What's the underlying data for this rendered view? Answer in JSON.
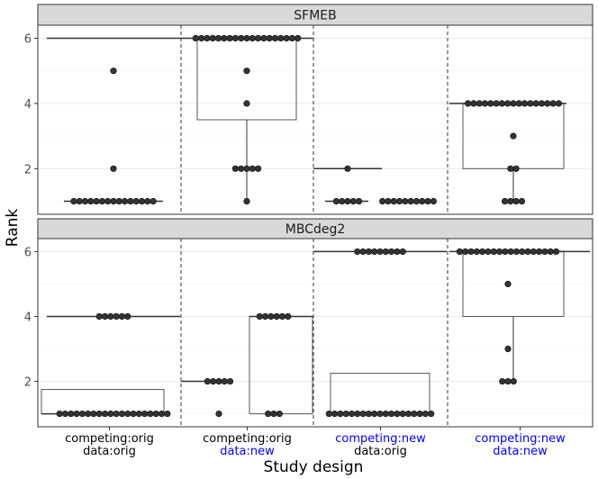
{
  "chart_data": {
    "type": "boxplot-with-dotplot",
    "ylabel": "Rank",
    "xlabel": "Study design",
    "ylim": [
      0.6,
      6.4
    ],
    "yticks": [
      2,
      4,
      6
    ],
    "grid": true,
    "group_labels": [
      {
        "line1": "competing:orig",
        "line2": "data:orig",
        "color1": "#000000",
        "color2": "#000000"
      },
      {
        "line1": "competing:orig",
        "line2": "data:new",
        "color1": "#000000",
        "color2": "#0000ff"
      },
      {
        "line1": "competing:new",
        "line2": "data:orig",
        "color1": "#0000ff",
        "color2": "#000000"
      },
      {
        "line1": "competing:new",
        "line2": "data:new",
        "color1": "#0000ff",
        "color2": "#0000ff"
      }
    ],
    "panels": [
      {
        "title": "SFMEB",
        "boxes": [
          {
            "group": 0,
            "sub": 0,
            "q1": 6,
            "median": 6,
            "q3": 6
          },
          {
            "group": 0,
            "sub": 1,
            "q1": 1,
            "median": 1,
            "q3": 1
          },
          {
            "group": 1,
            "sub": 0,
            "q1": 6,
            "median": 6,
            "q3": 6
          },
          {
            "group": 1,
            "sub": 1,
            "q1": 3.5,
            "median": 6,
            "q3": 6,
            "whisker_low": 1
          },
          {
            "group": 2,
            "sub": 0,
            "q1": 2,
            "median": 2,
            "q3": 2
          },
          {
            "group": 2,
            "sub": 1,
            "q1": 1,
            "median": 1,
            "q3": 1
          },
          {
            "group": 2,
            "sub": 2,
            "q1": 1,
            "median": 1,
            "q3": 1
          },
          {
            "group": 3,
            "sub": 0,
            "q1": 4,
            "median": 4,
            "q3": 4
          },
          {
            "group": 3,
            "sub": 1,
            "q1": 2,
            "median": 4,
            "q3": 4,
            "whisker_low": 1
          }
        ],
        "dots": [
          {
            "group": 0,
            "sub": 1,
            "values": [
              1,
              1,
              1,
              1,
              1,
              1,
              1,
              1,
              1,
              1,
              1,
              1,
              1,
              1,
              1,
              2,
              5
            ]
          },
          {
            "group": 1,
            "sub": 1,
            "values": [
              6,
              6,
              6,
              6,
              6,
              6,
              6,
              6,
              6,
              6,
              6,
              6,
              6,
              6,
              6,
              6,
              6,
              6,
              6,
              5,
              4,
              2,
              2,
              2,
              2,
              2,
              1
            ]
          },
          {
            "group": 2,
            "sub": 0,
            "values": [
              2,
              1,
              1,
              1,
              1,
              1
            ]
          },
          {
            "group": 2,
            "sub": 1,
            "values": [
              1,
              1,
              1,
              1,
              1,
              1,
              1,
              1,
              1,
              1
            ]
          },
          {
            "group": 3,
            "sub": 1,
            "values": [
              4,
              4,
              4,
              4,
              4,
              4,
              4,
              4,
              4,
              4,
              4,
              4,
              4,
              4,
              4,
              4,
              4,
              3,
              2,
              2,
              1,
              1,
              1,
              1
            ]
          }
        ]
      },
      {
        "title": "MBCdeg2",
        "boxes": [
          {
            "group": 0,
            "sub": 0,
            "q1": 4,
            "median": 4,
            "q3": 4
          },
          {
            "group": 0,
            "sub": 1,
            "q1": 1,
            "median": 1,
            "q3": 1.75
          },
          {
            "group": 1,
            "sub": 0,
            "q1": 2,
            "median": 2,
            "q3": 2
          },
          {
            "group": 1,
            "sub": 1,
            "q1": 1,
            "median": 4,
            "q3": 4
          },
          {
            "group": 2,
            "sub": 0,
            "q1": 6,
            "median": 6,
            "q3": 6
          },
          {
            "group": 2,
            "sub": 1,
            "q1": 1,
            "median": 1,
            "q3": 2.25
          },
          {
            "group": 3,
            "sub": 0,
            "q1": 6,
            "median": 6,
            "q3": 6
          },
          {
            "group": 3,
            "sub": 1,
            "q1": 4,
            "median": 6,
            "q3": 6,
            "whisker_low": 2
          }
        ],
        "dots": [
          {
            "group": 0,
            "sub": 1,
            "values": [
              4,
              4,
              4,
              4,
              4,
              4,
              1,
              1,
              1,
              1,
              1,
              1,
              1,
              1,
              1,
              1,
              1,
              1,
              1,
              1,
              1,
              1,
              1,
              1,
              1,
              1
            ]
          },
          {
            "group": 1,
            "sub": 0,
            "values": [
              2,
              2,
              2,
              2,
              2,
              1
            ]
          },
          {
            "group": 1,
            "sub": 1,
            "values": [
              4,
              4,
              4,
              4,
              4,
              4,
              1,
              1,
              1
            ]
          },
          {
            "group": 2,
            "sub": 1,
            "values": [
              6,
              6,
              6,
              6,
              6,
              6,
              6,
              6,
              6,
              1,
              1,
              1,
              1,
              1,
              1,
              1,
              1,
              1,
              1,
              1,
              1,
              1,
              1,
              1,
              1,
              1,
              1,
              1
            ]
          },
          {
            "group": 3,
            "sub": 1,
            "values": [
              6,
              6,
              6,
              6,
              6,
              6,
              6,
              6,
              6,
              6,
              6,
              6,
              6,
              6,
              6,
              6,
              6,
              6,
              5,
              3,
              2,
              2,
              2
            ]
          }
        ]
      }
    ]
  }
}
